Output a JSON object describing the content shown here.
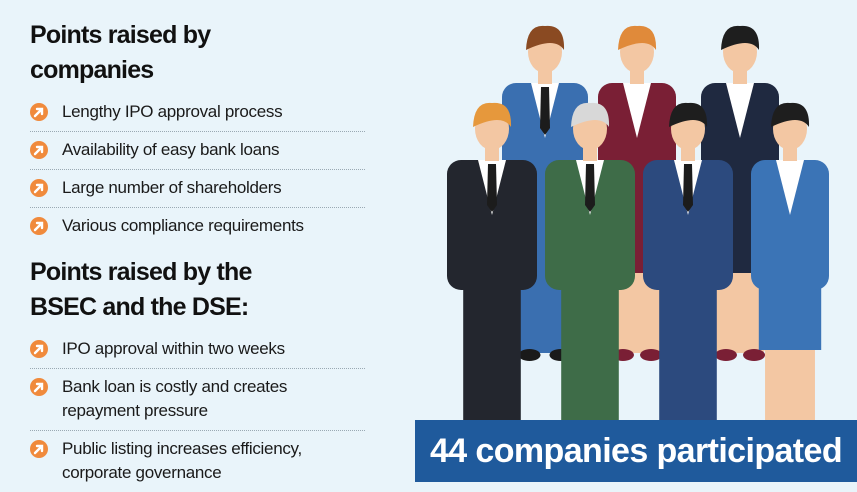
{
  "sections": [
    {
      "title": "Points raised by companies",
      "items": [
        "Lengthy IPO approval process",
        "Availability of easy bank loans",
        "Large number of shareholders",
        "Various compliance requirements"
      ]
    },
    {
      "title": "Points raised by the BSEC and the DSE:",
      "items": [
        "IPO approval within two weeks",
        "Bank loan is costly and creates repayment pressure",
        "Public listing increases efficiency, corporate governance"
      ]
    }
  ],
  "banner": "44 companies participated"
}
